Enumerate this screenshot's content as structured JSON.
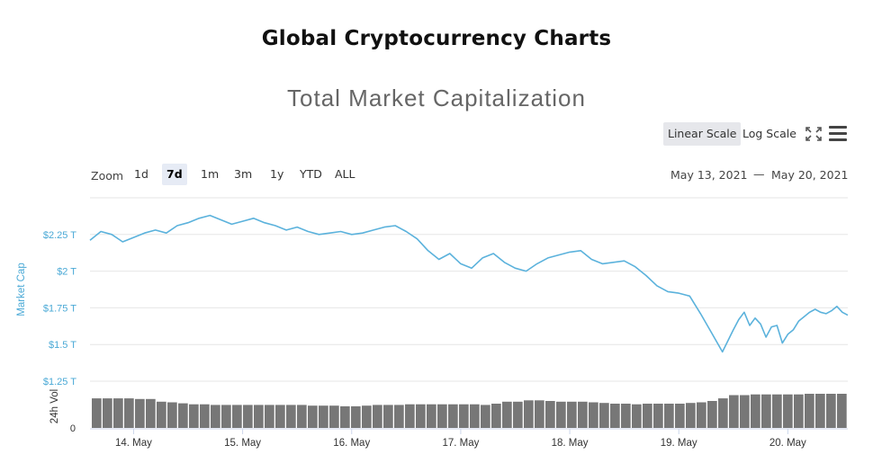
{
  "header": {
    "page_title": "Global Cryptocurrency Charts"
  },
  "toolbar": {
    "scale_options": [
      "Linear Scale",
      "Log Scale"
    ],
    "active_scale": "Linear Scale",
    "fullscreen_icon": "fullscreen-icon",
    "menu_icon": "hamburger-menu-icon"
  },
  "range_selector": {
    "label": "Zoom",
    "buttons": [
      "1d",
      "7d",
      "1m",
      "3m",
      "1y",
      "YTD",
      "ALL"
    ],
    "active": "7d",
    "from": "May 13, 2021",
    "separator": "—",
    "to": "May 20, 2021"
  },
  "chart_data": {
    "type": "line",
    "title": "Total Market Capitalization",
    "ylabel": "Market Cap",
    "ylabel_color": "#4aa9d6",
    "line_color": "#5bb2dc",
    "y_ticks": [
      "$1.25 T",
      "$1.5 T",
      "$1.75 T",
      "$2 T",
      "$2.25 T"
    ],
    "y_tick_values": [
      1.25,
      1.5,
      1.75,
      2.0,
      2.25
    ],
    "ylim": [
      1.25,
      2.5
    ],
    "x_ticks": [
      "14. May",
      "15. May",
      "16. May",
      "17. May",
      "18. May",
      "19. May",
      "20. May"
    ],
    "x_tick_values": [
      14,
      15,
      16,
      17,
      18,
      19,
      20
    ],
    "xlim": [
      13.6,
      20.55
    ],
    "grid": true,
    "series": [
      {
        "values_unit": "trillion USD",
        "x": [
          13.6,
          13.7,
          13.8,
          13.9,
          14.0,
          14.1,
          14.2,
          14.3,
          14.4,
          14.5,
          14.6,
          14.7,
          14.8,
          14.9,
          15.0,
          15.1,
          15.2,
          15.3,
          15.4,
          15.5,
          15.6,
          15.7,
          15.8,
          15.9,
          16.0,
          16.1,
          16.2,
          16.3,
          16.4,
          16.5,
          16.6,
          16.7,
          16.8,
          16.9,
          17.0,
          17.1,
          17.2,
          17.3,
          17.4,
          17.5,
          17.6,
          17.7,
          17.8,
          17.9,
          18.0,
          18.1,
          18.2,
          18.3,
          18.4,
          18.5,
          18.6,
          18.7,
          18.8,
          18.9,
          19.0,
          19.1,
          19.2,
          19.3,
          19.4,
          19.5,
          19.55,
          19.6,
          19.65,
          19.7,
          19.75,
          19.8,
          19.85,
          19.9,
          19.95,
          20.0,
          20.05,
          20.1,
          20.15,
          20.2,
          20.25,
          20.3,
          20.35,
          20.4,
          20.45,
          20.5,
          20.55
        ],
        "values": [
          2.21,
          2.27,
          2.25,
          2.2,
          2.23,
          2.26,
          2.28,
          2.26,
          2.31,
          2.33,
          2.36,
          2.38,
          2.35,
          2.32,
          2.34,
          2.36,
          2.33,
          2.31,
          2.28,
          2.3,
          2.27,
          2.25,
          2.26,
          2.27,
          2.25,
          2.26,
          2.28,
          2.3,
          2.31,
          2.27,
          2.22,
          2.14,
          2.08,
          2.12,
          2.05,
          2.02,
          2.09,
          2.12,
          2.06,
          2.02,
          2.0,
          2.05,
          2.09,
          2.11,
          2.13,
          2.14,
          2.08,
          2.05,
          2.06,
          2.07,
          2.03,
          1.97,
          1.9,
          1.86,
          1.85,
          1.83,
          1.71,
          1.58,
          1.45,
          1.6,
          1.67,
          1.72,
          1.63,
          1.68,
          1.64,
          1.55,
          1.62,
          1.63,
          1.51,
          1.57,
          1.6,
          1.66,
          1.69,
          1.72,
          1.74,
          1.72,
          1.71,
          1.73,
          1.76,
          1.72,
          1.7
        ]
      }
    ],
    "volume": {
      "ylabel": "24h Vol",
      "y_tick": "0",
      "bar_color": "#777777",
      "levels": [
        0.9,
        0.9,
        0.9,
        0.9,
        0.88,
        0.88,
        0.8,
        0.78,
        0.75,
        0.72,
        0.72,
        0.7,
        0.7,
        0.7,
        0.7,
        0.7,
        0.7,
        0.7,
        0.7,
        0.7,
        0.68,
        0.68,
        0.68,
        0.66,
        0.66,
        0.68,
        0.7,
        0.7,
        0.7,
        0.72,
        0.72,
        0.72,
        0.72,
        0.72,
        0.72,
        0.72,
        0.7,
        0.74,
        0.8,
        0.8,
        0.84,
        0.84,
        0.82,
        0.8,
        0.8,
        0.8,
        0.78,
        0.76,
        0.74,
        0.74,
        0.72,
        0.74,
        0.74,
        0.74,
        0.74,
        0.76,
        0.78,
        0.82,
        0.9,
        1.0,
        1.0,
        1.02,
        1.02,
        1.02,
        1.02,
        1.02,
        1.04,
        1.04,
        1.04,
        1.04
      ]
    }
  }
}
